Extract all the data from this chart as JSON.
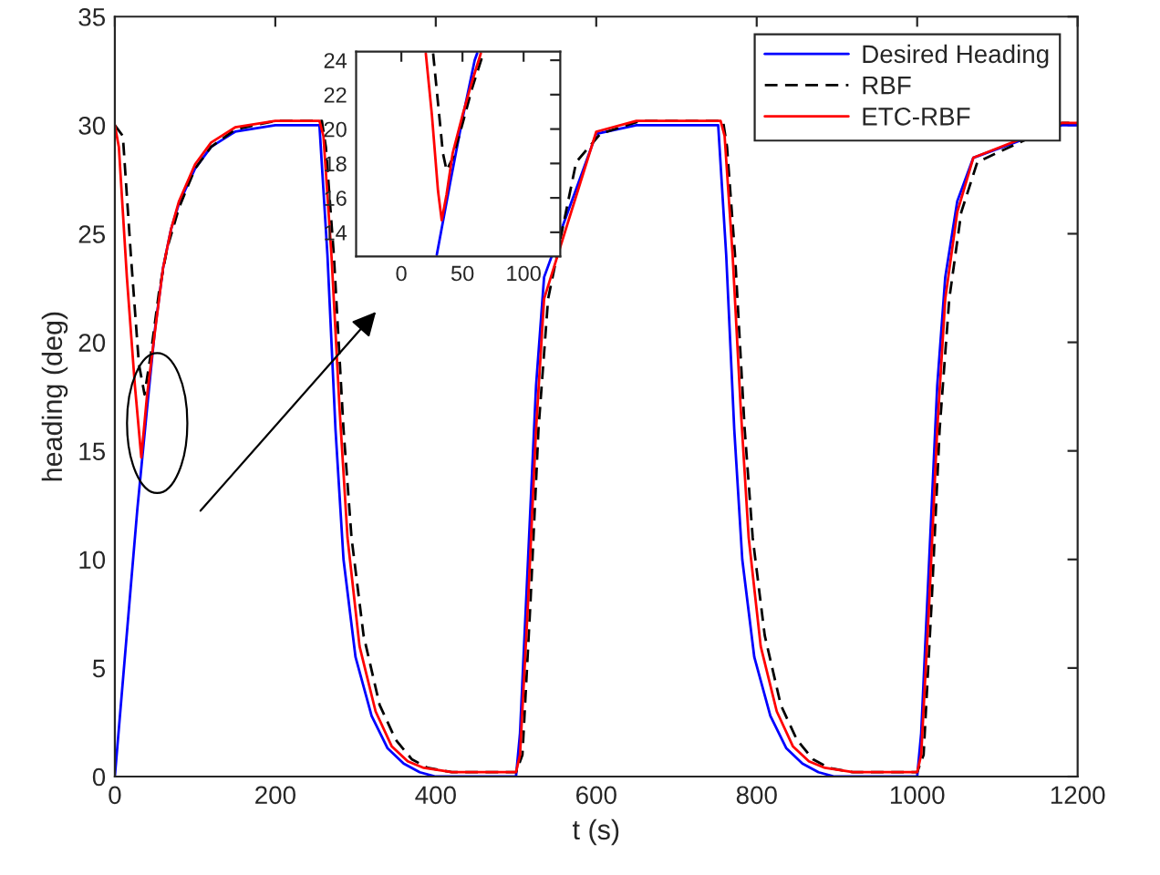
{
  "chart_data": [
    {
      "type": "line",
      "xlabel": "t (s)",
      "ylabel": "heading (deg)",
      "xlim": [
        0,
        1200
      ],
      "ylim": [
        0,
        35
      ],
      "xticks": [
        0,
        200,
        400,
        600,
        800,
        1000,
        1200
      ],
      "yticks": [
        0,
        5,
        10,
        15,
        20,
        25,
        30,
        35
      ],
      "grid": false,
      "legend": "top right",
      "marker": "none",
      "series": [
        {
          "name": "Desired Heading",
          "color": "#0000ff",
          "line_style": "solid",
          "x": [
            0,
            10,
            20,
            28,
            40,
            50,
            60,
            70,
            80,
            100,
            120,
            150,
            200,
            255,
            265,
            275,
            285,
            300,
            320,
            340,
            360,
            380,
            400,
            420,
            500,
            505,
            515,
            525,
            535,
            550,
            570,
            600,
            650,
            752,
            762,
            772,
            782,
            797,
            817,
            837,
            857,
            877,
            897,
            917,
            1000,
            1005,
            1015,
            1025,
            1035,
            1050,
            1070,
            1100,
            1150,
            1180,
            1200
          ],
          "values": [
            0,
            4.4,
            8.8,
            12.3,
            16.9,
            20.6,
            23.4,
            25.2,
            26.4,
            28.0,
            29.0,
            29.7,
            30.0,
            30.0,
            24,
            16,
            10,
            5.5,
            2.8,
            1.3,
            0.6,
            0.2,
            0,
            0,
            0,
            2,
            10,
            18,
            23,
            null,
            null,
            29.6,
            30.0,
            30.0,
            24,
            16,
            10,
            5.5,
            2.8,
            1.3,
            0.6,
            0.2,
            0,
            0,
            0,
            2,
            10,
            18,
            23,
            26.5,
            28.5,
            null,
            null,
            30.0,
            30.0
          ]
        },
        {
          "name": "RBF",
          "color": "#000000",
          "line_style": "dashed",
          "x": [
            0,
            10,
            20,
            30,
            37,
            45,
            55,
            65,
            80,
            100,
            120,
            150,
            200,
            258,
            263,
            273,
            285,
            295,
            310,
            330,
            350,
            370,
            390,
            420,
            500,
            508,
            518,
            528,
            540,
            555,
            575,
            605,
            655,
            758,
            763,
            773,
            785,
            795,
            810,
            830,
            850,
            870,
            890,
            920,
            1000,
            1008,
            1018,
            1028,
            1040,
            1055,
            1075,
            1105,
            1150,
            1180,
            1200
          ],
          "values": [
            30,
            29.5,
            24,
            19,
            17.6,
            19.5,
            22.3,
            24.3,
            26.2,
            28.0,
            29.0,
            29.8,
            30.2,
            30.2,
            29,
            24,
            16,
            11,
            6.5,
            3.3,
            1.7,
            0.8,
            0.4,
            0.2,
            0.2,
            1,
            8,
            16,
            22,
            null,
            28.3,
            29.6,
            30.2,
            30.2,
            29,
            24,
            16,
            11,
            6.5,
            3.3,
            1.7,
            0.8,
            0.4,
            0.2,
            0.2,
            1,
            8,
            16,
            22,
            26,
            28.3,
            null,
            null,
            30.1,
            30.1
          ]
        },
        {
          "name": "ETC-RBF",
          "color": "#ff0000",
          "line_style": "solid",
          "x": [
            0,
            5,
            15,
            25,
            33,
            40,
            50,
            60,
            70,
            80,
            100,
            120,
            150,
            200,
            255,
            260,
            270,
            280,
            290,
            305,
            325,
            345,
            365,
            385,
            420,
            500,
            505,
            515,
            525,
            535,
            550,
            570,
            600,
            650,
            755,
            760,
            770,
            780,
            790,
            805,
            825,
            845,
            865,
            885,
            920,
            1000,
            1005,
            1015,
            1025,
            1035,
            1050,
            1070,
            1100,
            1150,
            1180,
            1200
          ],
          "values": [
            30,
            29,
            23,
            18,
            14.7,
            17.5,
            20.5,
            23.4,
            25.2,
            26.5,
            28.2,
            29.2,
            29.9,
            30.2,
            30.2,
            29.5,
            24,
            17,
            11,
            6,
            3,
            1.4,
            0.7,
            0.4,
            0.2,
            0.2,
            1,
            8,
            16,
            22,
            null,
            null,
            29.7,
            30.2,
            30.2,
            29.5,
            24,
            17,
            11,
            6,
            3,
            1.4,
            0.7,
            0.4,
            0.2,
            0.2,
            1,
            8,
            16,
            22,
            26,
            28.5,
            null,
            null,
            30.1,
            30.1
          ]
        }
      ]
    },
    {
      "type": "line",
      "xlim": [
        -37,
        130
      ],
      "ylim": [
        12.6,
        24.5
      ],
      "xticks": [
        0,
        50,
        100
      ],
      "yticks": [
        14,
        16,
        18,
        20,
        22,
        24
      ],
      "grid": false,
      "legend": false,
      "marker": "none",
      "series": [
        {
          "color": "#0000ff",
          "line_style": "solid",
          "x": [
            29,
            40,
            50,
            60,
            62
          ],
          "values": [
            12.7,
            16.9,
            20.6,
            24.0,
            24.4
          ]
        },
        {
          "color": "#000000",
          "line_style": "dashed",
          "x": [
            26,
            30,
            34,
            37,
            42,
            50,
            58,
            67
          ],
          "values": [
            24.4,
            21.5,
            18.6,
            17.6,
            18.3,
            20.3,
            22.4,
            24.4
          ]
        },
        {
          "color": "#ff0000",
          "line_style": "solid",
          "x": [
            20,
            25,
            30,
            33,
            37,
            42,
            50,
            58,
            65
          ],
          "values": [
            24.4,
            20.8,
            16.4,
            14.7,
            16.2,
            18.6,
            20.8,
            22.8,
            24.4
          ]
        }
      ]
    }
  ]
}
